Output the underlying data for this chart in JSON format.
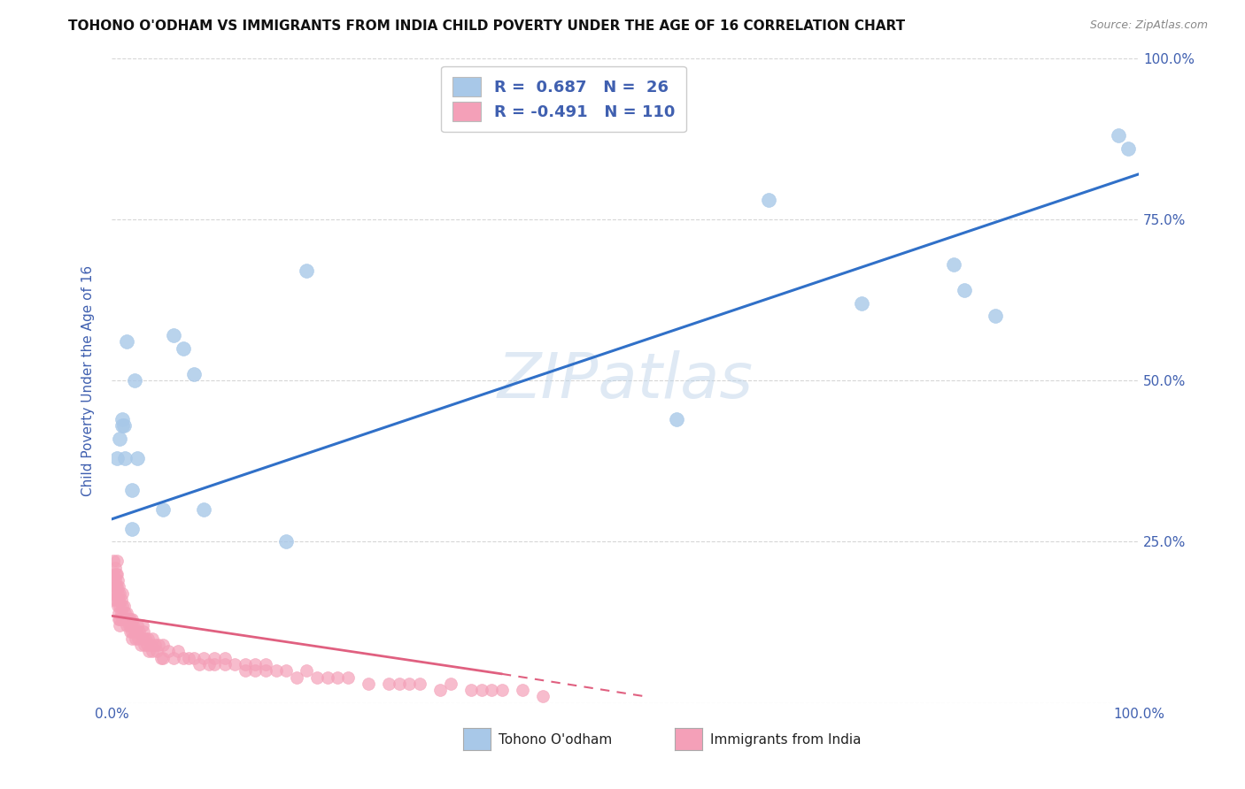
{
  "title": "TOHONO O'ODHAM VS IMMIGRANTS FROM INDIA CHILD POVERTY UNDER THE AGE OF 16 CORRELATION CHART",
  "source": "Source: ZipAtlas.com",
  "ylabel": "Child Poverty Under the Age of 16",
  "xlim": [
    0,
    1
  ],
  "ylim": [
    0,
    1
  ],
  "blue_R": 0.687,
  "blue_N": 26,
  "pink_R": -0.491,
  "pink_N": 110,
  "blue_color": "#a8c8e8",
  "pink_color": "#f4a0b8",
  "blue_line_color": "#3070c8",
  "pink_line_color": "#e06080",
  "watermark_text": "ZIPatlas",
  "grid_color": "#cccccc",
  "blue_scatter_x": [
    0.005,
    0.008,
    0.01,
    0.01,
    0.012,
    0.013,
    0.015,
    0.02,
    0.02,
    0.022,
    0.025,
    0.05,
    0.06,
    0.07,
    0.08,
    0.09,
    0.17,
    0.19,
    0.55,
    0.64,
    0.73,
    0.82,
    0.83,
    0.86,
    0.98,
    0.99
  ],
  "blue_scatter_y": [
    0.38,
    0.41,
    0.43,
    0.44,
    0.43,
    0.38,
    0.56,
    0.33,
    0.27,
    0.5,
    0.38,
    0.3,
    0.57,
    0.55,
    0.51,
    0.3,
    0.25,
    0.67,
    0.44,
    0.78,
    0.62,
    0.68,
    0.64,
    0.6,
    0.88,
    0.86
  ],
  "pink_scatter_x": [
    0.001,
    0.001,
    0.001,
    0.002,
    0.002,
    0.003,
    0.003,
    0.003,
    0.004,
    0.004,
    0.004,
    0.005,
    0.005,
    0.005,
    0.006,
    0.006,
    0.006,
    0.007,
    0.007,
    0.007,
    0.007,
    0.008,
    0.008,
    0.008,
    0.008,
    0.009,
    0.009,
    0.01,
    0.01,
    0.01,
    0.012,
    0.012,
    0.013,
    0.014,
    0.015,
    0.015,
    0.016,
    0.017,
    0.018,
    0.018,
    0.019,
    0.02,
    0.02,
    0.02,
    0.021,
    0.022,
    0.023,
    0.024,
    0.025,
    0.026,
    0.027,
    0.028,
    0.03,
    0.03,
    0.031,
    0.032,
    0.033,
    0.034,
    0.035,
    0.036,
    0.038,
    0.04,
    0.04,
    0.042,
    0.044,
    0.046,
    0.048,
    0.05,
    0.05,
    0.055,
    0.06,
    0.065,
    0.07,
    0.075,
    0.08,
    0.085,
    0.09,
    0.095,
    0.1,
    0.1,
    0.11,
    0.11,
    0.12,
    0.13,
    0.13,
    0.14,
    0.14,
    0.15,
    0.15,
    0.16,
    0.17,
    0.18,
    0.19,
    0.2,
    0.21,
    0.22,
    0.23,
    0.25,
    0.27,
    0.28,
    0.29,
    0.3,
    0.32,
    0.33,
    0.35,
    0.36,
    0.37,
    0.38,
    0.4,
    0.42
  ],
  "pink_scatter_y": [
    0.19,
    0.17,
    0.16,
    0.22,
    0.2,
    0.21,
    0.19,
    0.17,
    0.2,
    0.18,
    0.16,
    0.22,
    0.2,
    0.18,
    0.19,
    0.17,
    0.15,
    0.18,
    0.16,
    0.14,
    0.13,
    0.17,
    0.15,
    0.13,
    0.12,
    0.16,
    0.14,
    0.17,
    0.15,
    0.13,
    0.15,
    0.13,
    0.14,
    0.13,
    0.14,
    0.12,
    0.13,
    0.12,
    0.13,
    0.11,
    0.12,
    0.13,
    0.11,
    0.1,
    0.12,
    0.11,
    0.1,
    0.11,
    0.12,
    0.1,
    0.11,
    0.09,
    0.12,
    0.1,
    0.11,
    0.09,
    0.1,
    0.09,
    0.1,
    0.08,
    0.09,
    0.1,
    0.08,
    0.09,
    0.08,
    0.09,
    0.07,
    0.09,
    0.07,
    0.08,
    0.07,
    0.08,
    0.07,
    0.07,
    0.07,
    0.06,
    0.07,
    0.06,
    0.07,
    0.06,
    0.06,
    0.07,
    0.06,
    0.06,
    0.05,
    0.06,
    0.05,
    0.06,
    0.05,
    0.05,
    0.05,
    0.04,
    0.05,
    0.04,
    0.04,
    0.04,
    0.04,
    0.03,
    0.03,
    0.03,
    0.03,
    0.03,
    0.02,
    0.03,
    0.02,
    0.02,
    0.02,
    0.02,
    0.02,
    0.01
  ],
  "blue_line_x0": 0.0,
  "blue_line_x1": 1.0,
  "blue_line_y0": 0.285,
  "blue_line_y1": 0.82,
  "pink_line_solid_x0": 0.0,
  "pink_line_solid_x1": 0.38,
  "pink_line_y0": 0.135,
  "pink_line_y1": 0.045,
  "pink_line_dash_x0": 0.38,
  "pink_line_dash_x1": 0.52,
  "pink_line_dash_y0": 0.045,
  "pink_line_dash_y1": 0.01,
  "background_color": "#ffffff",
  "title_fontsize": 11,
  "tick_color": "#4060b0",
  "legend_label_color": "#4060b0"
}
